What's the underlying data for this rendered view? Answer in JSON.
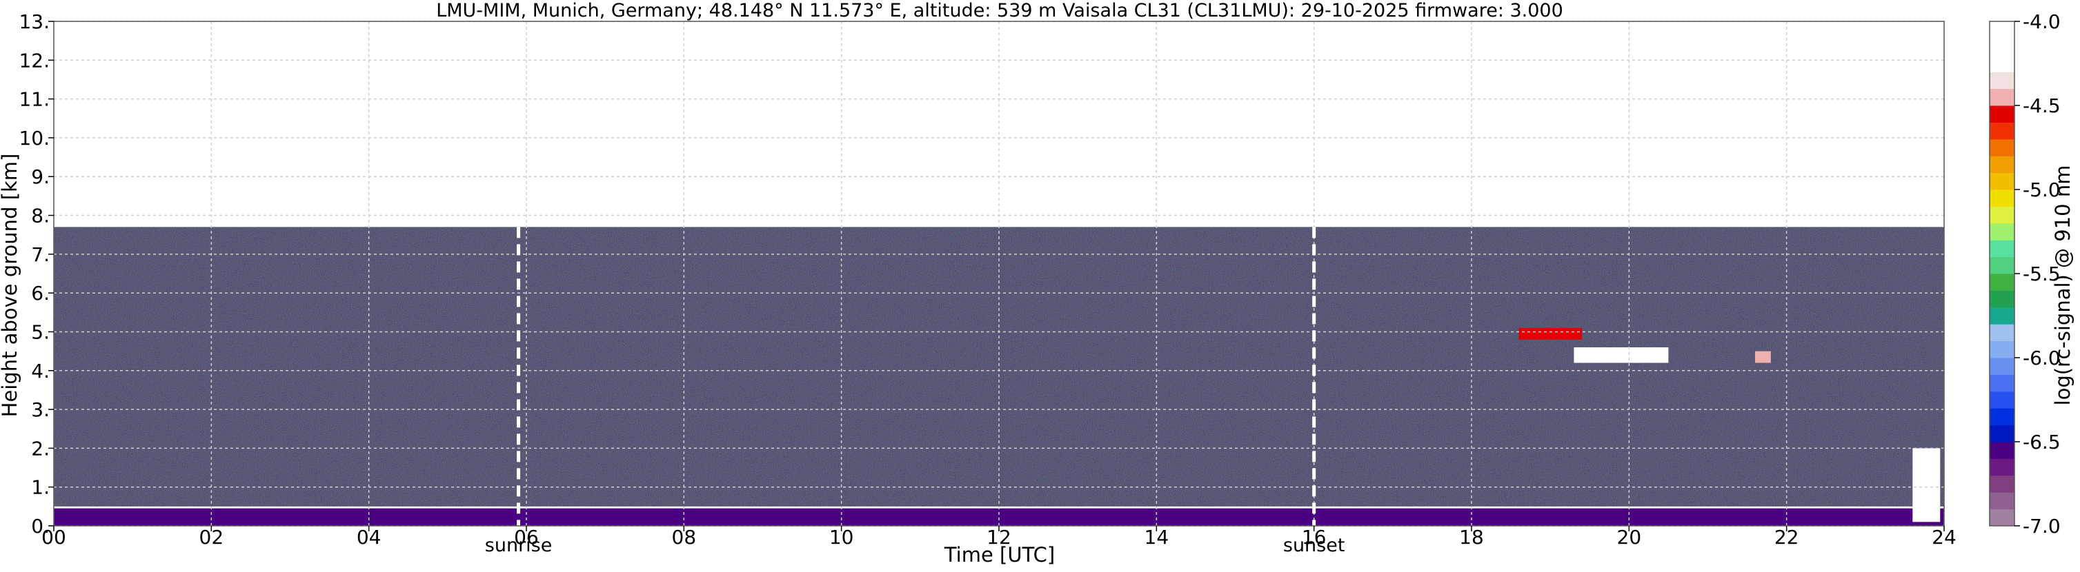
{
  "chart_data": {
    "type": "heatmap",
    "title": "LMU-MIM, Munich, Germany; 48.148° N 11.573° E, altitude: 539 m    Vaisala CL31 (CL31LMU): 29-10-2025    firmware: 3.000",
    "xlabel": "Time [UTC]",
    "ylabel": "Height above ground [km]",
    "xlim": [
      0,
      24
    ],
    "ylim": [
      0,
      13
    ],
    "x_ticks": [
      0,
      2,
      4,
      6,
      8,
      10,
      12,
      14,
      16,
      18,
      20,
      22,
      24
    ],
    "x_tick_labels": [
      "00",
      "02",
      "04",
      "06",
      "08",
      "10",
      "12",
      "14",
      "16",
      "18",
      "20",
      "22",
      "24"
    ],
    "y_ticks": [
      0,
      1,
      2,
      3,
      4,
      5,
      6,
      7,
      8,
      9,
      10,
      11,
      12,
      13
    ],
    "y_tick_labels": [
      "0.",
      "1.",
      "2.",
      "3.",
      "4.",
      "5.",
      "6.",
      "7.",
      "8.",
      "9.",
      "10.",
      "11.",
      "12.",
      "13."
    ],
    "grid": true,
    "data_top_km": 7.7,
    "events": [
      {
        "label": "sunrise",
        "time": 5.9
      },
      {
        "label": "sunset",
        "time": 16.0
      }
    ],
    "colorbar": {
      "label": "log(rc-signal) @ 910 nm",
      "range": [
        -7.0,
        -4.0
      ],
      "ticks": [
        -7.0,
        -6.5,
        -6.0,
        -5.5,
        -5.0,
        -4.5,
        -4.0
      ],
      "tick_labels": [
        "-7.0",
        "-6.5",
        "-6.0",
        "-5.5",
        "-5.0",
        "-4.5",
        "-4.0"
      ],
      "colors": [
        "#a080a0",
        "#906090",
        "#803d80",
        "#6a1a80",
        "#4a0080",
        "#0018c0",
        "#0030e0",
        "#2850f0",
        "#4870f0",
        "#6890f0",
        "#88acf0",
        "#a0c0f0",
        "#18a890",
        "#20a050",
        "#40b040",
        "#50d080",
        "#58e0a0",
        "#a0f070",
        "#e0f040",
        "#f0e000",
        "#f0c000",
        "#f0a000",
        "#f07000",
        "#f03000",
        "#e00000",
        "#f0b0b0",
        "#f0e0e0",
        "#ffffff",
        "#ffffff",
        "#ffffff"
      ]
    },
    "features": [
      {
        "name": "background noise",
        "t_start": 0,
        "t_end": 24,
        "h_bottom": 0.5,
        "h_top": 7.7,
        "log_signal": -6.3
      },
      {
        "name": "boundary layer aerosol",
        "t_start": 0,
        "t_end": 24,
        "h_bottom": 0.0,
        "h_top": 0.45,
        "log_signal": -6.6
      },
      {
        "name": "cloud",
        "t_start": 19.3,
        "t_end": 20.5,
        "h_bottom": 4.2,
        "h_top": 4.6,
        "log_signal": -4.3
      },
      {
        "name": "cloud",
        "t_start": 18.6,
        "t_end": 19.4,
        "h_bottom": 4.8,
        "h_top": 5.1,
        "log_signal": -4.6
      },
      {
        "name": "cloud",
        "t_start": 21.6,
        "t_end": 21.8,
        "h_bottom": 4.2,
        "h_top": 4.5,
        "log_signal": -4.5
      },
      {
        "name": "cloud",
        "t_start": 23.6,
        "t_end": 23.95,
        "h_bottom": 0.1,
        "h_top": 2.0,
        "log_signal": -4.2
      }
    ]
  }
}
